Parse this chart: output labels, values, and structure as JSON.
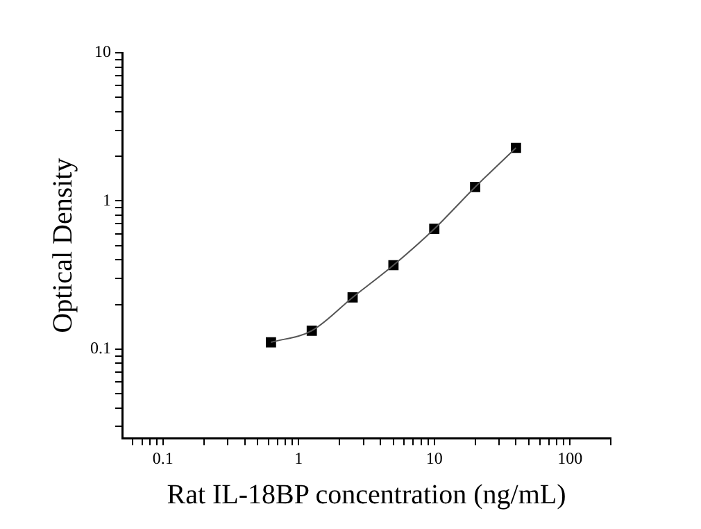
{
  "chart_data": {
    "type": "scatter",
    "xlabel": "Rat IL-18BP concentration (ng/mL)",
    "ylabel": "Optical Density",
    "log": "xy",
    "marker": "square",
    "legend": false,
    "grid": false,
    "xlim": [
      0.05,
      200
    ],
    "ylim": [
      0.025,
      10
    ],
    "xticks": [
      {
        "value": 0.06,
        "label": null
      },
      {
        "value": 0.07,
        "label": null
      },
      {
        "value": 0.08,
        "label": null
      },
      {
        "value": 0.09,
        "label": null
      },
      0.1,
      {
        "value": 0.2,
        "label": null
      },
      {
        "value": 0.3,
        "label": null
      },
      {
        "value": 0.4,
        "label": null
      },
      {
        "value": 0.5,
        "label": null
      },
      {
        "value": 0.6,
        "label": null
      },
      {
        "value": 0.7,
        "label": null
      },
      {
        "value": 0.8,
        "label": null
      },
      {
        "value": 0.9,
        "label": null
      },
      1,
      {
        "value": 2,
        "label": null
      },
      {
        "value": 3,
        "label": null
      },
      {
        "value": 4,
        "label": null
      },
      {
        "value": 5,
        "label": null
      },
      {
        "value": 6,
        "label": null
      },
      {
        "value": 7,
        "label": null
      },
      {
        "value": 8,
        "label": null
      },
      {
        "value": 9,
        "label": null
      },
      10,
      {
        "value": 20,
        "label": null
      },
      {
        "value": 30,
        "label": null
      },
      {
        "value": 40,
        "label": null
      },
      {
        "value": 50,
        "label": null
      },
      {
        "value": 60,
        "label": null
      },
      {
        "value": 70,
        "label": null
      },
      {
        "value": 80,
        "label": null
      },
      {
        "value": 90,
        "label": null
      },
      100,
      {
        "value": 200,
        "label": null
      }
    ],
    "yticks": [
      {
        "value": 0.03,
        "label": null
      },
      {
        "value": 0.04,
        "label": null
      },
      {
        "value": 0.05,
        "label": null
      },
      {
        "value": 0.06,
        "label": null
      },
      {
        "value": 0.07,
        "label": null
      },
      {
        "value": 0.08,
        "label": null
      },
      {
        "value": 0.09,
        "label": null
      },
      0.1,
      {
        "value": 0.2,
        "label": null
      },
      {
        "value": 0.3,
        "label": null
      },
      {
        "value": 0.4,
        "label": null
      },
      {
        "value": 0.5,
        "label": null
      },
      {
        "value": 0.6,
        "label": null
      },
      {
        "value": 0.7,
        "label": null
      },
      {
        "value": 0.8,
        "label": null
      },
      {
        "value": 0.9,
        "label": null
      },
      1,
      {
        "value": 2,
        "label": null
      },
      {
        "value": 3,
        "label": null
      },
      {
        "value": 4,
        "label": null
      },
      {
        "value": 5,
        "label": null
      },
      {
        "value": 6,
        "label": null
      },
      {
        "value": 7,
        "label": null
      },
      {
        "value": 8,
        "label": null
      },
      {
        "value": 9,
        "label": null
      },
      10
    ],
    "x": [
      0.625,
      1.25,
      2.5,
      5,
      10,
      20,
      40
    ],
    "series": [
      {
        "type": "line",
        "color": "#555555",
        "marker": "none",
        "x": [
          0.625,
          1.25,
          2.5,
          5,
          10,
          20,
          40
        ],
        "values": [
          0.111,
          0.133,
          0.223,
          0.368,
          0.647,
          1.24,
          2.28
        ]
      },
      {
        "type": "scatter",
        "color": "#000000",
        "values": [
          0.111,
          0.133,
          0.223,
          0.368,
          0.647,
          1.24,
          2.28
        ]
      }
    ]
  }
}
